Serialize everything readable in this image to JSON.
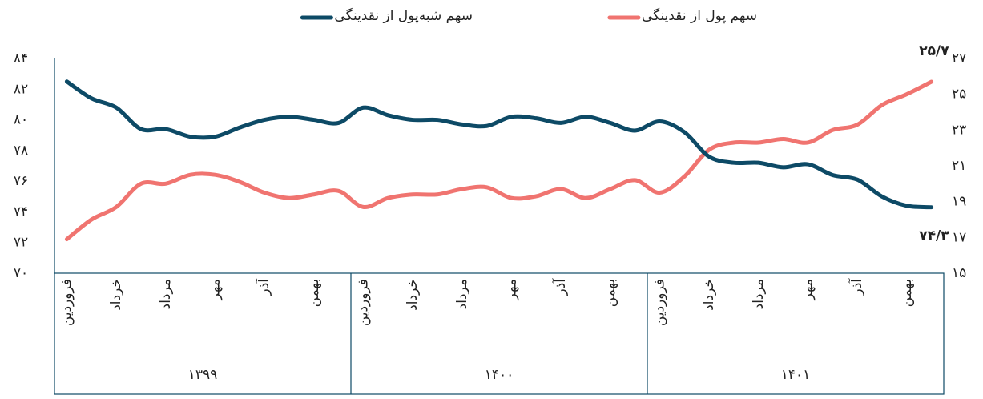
{
  "chart_data": {
    "type": "line",
    "categories": [
      "فروردین",
      null,
      "خرداد",
      null,
      "مرداد",
      null,
      "مهر",
      null,
      "آذر",
      null,
      "بهمن",
      null,
      "فروردین",
      null,
      "خرداد",
      null,
      "مرداد",
      null,
      "مهر",
      null,
      "آذر",
      null,
      "بهمن",
      null,
      "فروردین",
      null,
      "خرداد",
      null,
      "مرداد",
      null,
      "مهر",
      null,
      "آذر",
      null,
      "بهمن",
      null
    ],
    "x_groups": [
      "۱۳۹۹",
      "۱۴۰۰",
      "۱۴۰۱"
    ],
    "series": [
      {
        "name": "سهم پول از نقدینگی",
        "color": "#f07470",
        "axis": "y2",
        "values": [
          16.9,
          18.0,
          18.7,
          20.0,
          20.0,
          20.5,
          20.5,
          20.1,
          19.5,
          19.2,
          19.4,
          19.6,
          18.7,
          19.2,
          19.4,
          19.4,
          19.7,
          19.8,
          19.2,
          19.3,
          19.7,
          19.2,
          19.7,
          20.2,
          19.5,
          20.4,
          21.9,
          22.3,
          22.3,
          22.5,
          22.3,
          23.0,
          23.3,
          24.4,
          25.0,
          25.7
        ],
        "value_labels": [
          null,
          null,
          null,
          null,
          null,
          null,
          null,
          null,
          null,
          null,
          null,
          null,
          null,
          null,
          null,
          null,
          null,
          null,
          null,
          null,
          null,
          null,
          null,
          null,
          null,
          null,
          null,
          null,
          null,
          null,
          null,
          null,
          null,
          null,
          null,
          "۲۵/۷"
        ]
      },
      {
        "name": "سهم شبه‌پول از نقدینگی",
        "color": "#0d4a66",
        "values": [
          82.5,
          81.4,
          80.8,
          79.4,
          79.4,
          78.9,
          78.9,
          79.5,
          80.0,
          80.2,
          80.0,
          79.8,
          80.8,
          80.3,
          80.0,
          80.0,
          79.7,
          79.6,
          80.2,
          80.1,
          79.8,
          80.2,
          79.8,
          79.3,
          79.9,
          79.2,
          77.6,
          77.2,
          77.2,
          76.9,
          77.1,
          76.4,
          76.1,
          75.0,
          74.4,
          74.3
        ],
        "value_labels": [
          null,
          null,
          null,
          null,
          null,
          null,
          null,
          null,
          null,
          null,
          null,
          null,
          null,
          null,
          null,
          null,
          null,
          null,
          null,
          null,
          null,
          null,
          null,
          null,
          null,
          null,
          null,
          null,
          null,
          null,
          null,
          null,
          null,
          null,
          null,
          "۷۴/۳"
        ]
      }
    ],
    "ylim": [
      70,
      84
    ],
    "yticks": [
      {
        "value": 70,
        "label": "۷۰"
      },
      {
        "value": 72,
        "label": "۷۲"
      },
      {
        "value": 74,
        "label": "۷۴"
      },
      {
        "value": 76,
        "label": "۷۶"
      },
      {
        "value": 78,
        "label": "۷۸"
      },
      {
        "value": 80,
        "label": "۸۰"
      },
      {
        "value": 82,
        "label": "۸۲"
      },
      {
        "value": 84,
        "label": "۸۴"
      }
    ],
    "y2lim": [
      15,
      27
    ],
    "y2ticks": [
      {
        "value": 15,
        "label": "۱۵"
      },
      {
        "value": 17,
        "label": "۱۷"
      },
      {
        "value": 19,
        "label": "۱۹"
      },
      {
        "value": 21,
        "label": "۲۱"
      },
      {
        "value": 23,
        "label": "۲۳"
      },
      {
        "value": 25,
        "label": "۲۵"
      },
      {
        "value": 27,
        "label": "۲۷"
      }
    ],
    "legend": "top",
    "grid": false
  }
}
